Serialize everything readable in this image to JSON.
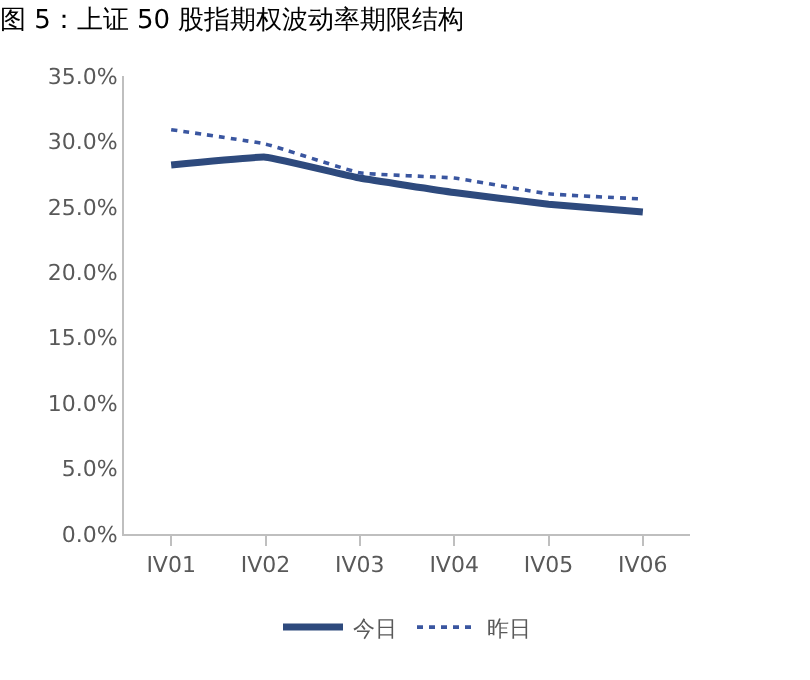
{
  "chart_data": {
    "type": "line",
    "title": "图 5：上证 50 股指期权波动率期限结构",
    "categories": [
      "IV01",
      "IV02",
      "IV03",
      "IV04",
      "IV05",
      "IV06"
    ],
    "series": [
      {
        "name": "今日",
        "color": "#2e4a7d",
        "line_style": "solid",
        "values": [
          28.2,
          28.8,
          27.2,
          26.1,
          25.2,
          24.6
        ]
      },
      {
        "name": "昨日",
        "color": "#3a56a0",
        "line_style": "dotted",
        "values": [
          30.9,
          29.8,
          27.6,
          27.2,
          26.0,
          25.6
        ]
      }
    ],
    "ylim": [
      0,
      35
    ],
    "yticks": [
      {
        "value": 0,
        "label": "0.0%"
      },
      {
        "value": 5,
        "label": "5.0%"
      },
      {
        "value": 10,
        "label": "10.0%"
      },
      {
        "value": 15,
        "label": "15.0%"
      },
      {
        "value": 20,
        "label": "20.0%"
      },
      {
        "value": 25,
        "label": "25.0%"
      },
      {
        "value": 30,
        "label": "30.0%"
      },
      {
        "value": 35,
        "label": "35.0%"
      }
    ],
    "legend": "bottom",
    "marker": "none"
  }
}
